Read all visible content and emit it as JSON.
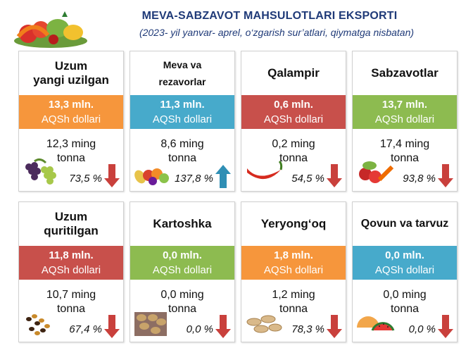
{
  "header": {
    "title": "MEVA-SABZAVOT MAHSULOTLARI EKSPORTI",
    "subtitle": "(2023- yil yanvar- aprel, o‘zgarish sur’atlari, qiymatga nisbatan)"
  },
  "colors": {
    "orange": "#f6963c",
    "blue": "#47aacb",
    "red": "#c8504b",
    "green": "#8dbb50",
    "arrow_down": "#c9403c",
    "arrow_up": "#2f8fb5",
    "title_text": "#1f3a78"
  },
  "cards": [
    {
      "name": "Uzum\nyangi uzilgan",
      "value": "13,3 mln.",
      "unit": "AQSh dollari",
      "qty1": "12,3 ming",
      "qty2": "tonna",
      "pct": "73,5 %",
      "color": "orange",
      "arrow": "down",
      "icon": "grapes-icon"
    },
    {
      "name": "Meva va\nrezavorlar",
      "value": "11,3 mln.",
      "unit": "AQSh dollari",
      "qty1": "8,6 ming",
      "qty2": "tonna",
      "pct": "137,8 %",
      "color": "blue",
      "arrow": "up",
      "icon": "fruit-basket-icon"
    },
    {
      "name": "Qalampir",
      "value": "0,6 mln.",
      "unit": "AQSh dollari",
      "qty1": "0,2 ming",
      "qty2": "tonna",
      "pct": "54,5 %",
      "color": "red",
      "arrow": "down",
      "icon": "chili-pepper-icon"
    },
    {
      "name": "Sabzavotlar",
      "value": "13,7 mln.",
      "unit": "AQSh dollari",
      "qty1": "17,4 ming",
      "qty2": "tonna",
      "pct": "93,8 %",
      "color": "green",
      "arrow": "down",
      "icon": "vegetables-icon"
    },
    {
      "name": "Uzum\nquritilgan",
      "value": "11,8 mln.",
      "unit": "AQSh dollari",
      "qty1": "10,7 ming",
      "qty2": "tonna",
      "pct": "67,4 %",
      "color": "red",
      "arrow": "down",
      "icon": "raisins-icon"
    },
    {
      "name": "Kartoshka",
      "value": "0,0 mln.",
      "unit": "AQSh dollari",
      "qty1": "0,0 ming",
      "qty2": "tonna",
      "pct": "0,0 %",
      "color": "green",
      "arrow": "down",
      "icon": "potatoes-icon"
    },
    {
      "name": "Yeryong‘oq",
      "value": "1,8 mln.",
      "unit": "AQSh dollari",
      "qty1": "1,2 ming",
      "qty2": "tonna",
      "pct": "78,3 %",
      "color": "orange",
      "arrow": "down",
      "icon": "peanuts-icon"
    },
    {
      "name": "Qovun va tarvuz",
      "value": "0,0 mln.",
      "unit": "AQSh dollari",
      "qty1": "0,0 ming",
      "qty2": "tonna",
      "pct": "0,0 %",
      "color": "blue",
      "arrow": "down",
      "icon": "melon-watermelon-icon"
    }
  ]
}
